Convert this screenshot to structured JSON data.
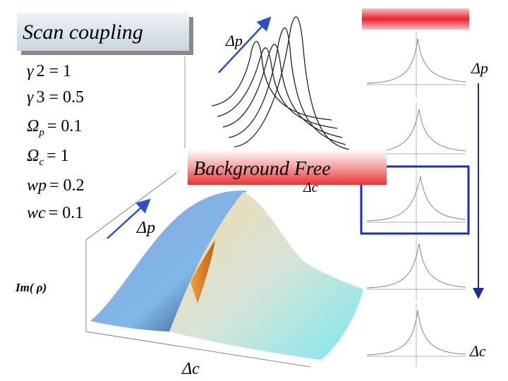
{
  "title": "Scan coupling",
  "parameters": [
    {
      "symbol": "γ",
      "sub": "",
      "value": "2 = 1"
    },
    {
      "symbol": "γ",
      "sub": "",
      "value": "3 = 0.5"
    },
    {
      "symbol": "Ω",
      "sub": "p",
      "value": "= 0.1"
    },
    {
      "symbol": "Ω",
      "sub": "c",
      "value": "= 1"
    },
    {
      "symbol": "wp",
      "sub": "",
      "value": "= 0.2"
    },
    {
      "symbol": "wc",
      "sub": "",
      "value": "= 0.1"
    }
  ],
  "banner": "Background Free",
  "labels": {
    "top_dp": "Δp",
    "top_dc": "Δc",
    "surface_dp": "Δp",
    "surface_dc": "Δc",
    "surface_z": "Im(   ρ)",
    "right_dp": "Δp",
    "right_dc": "Δc"
  }
}
